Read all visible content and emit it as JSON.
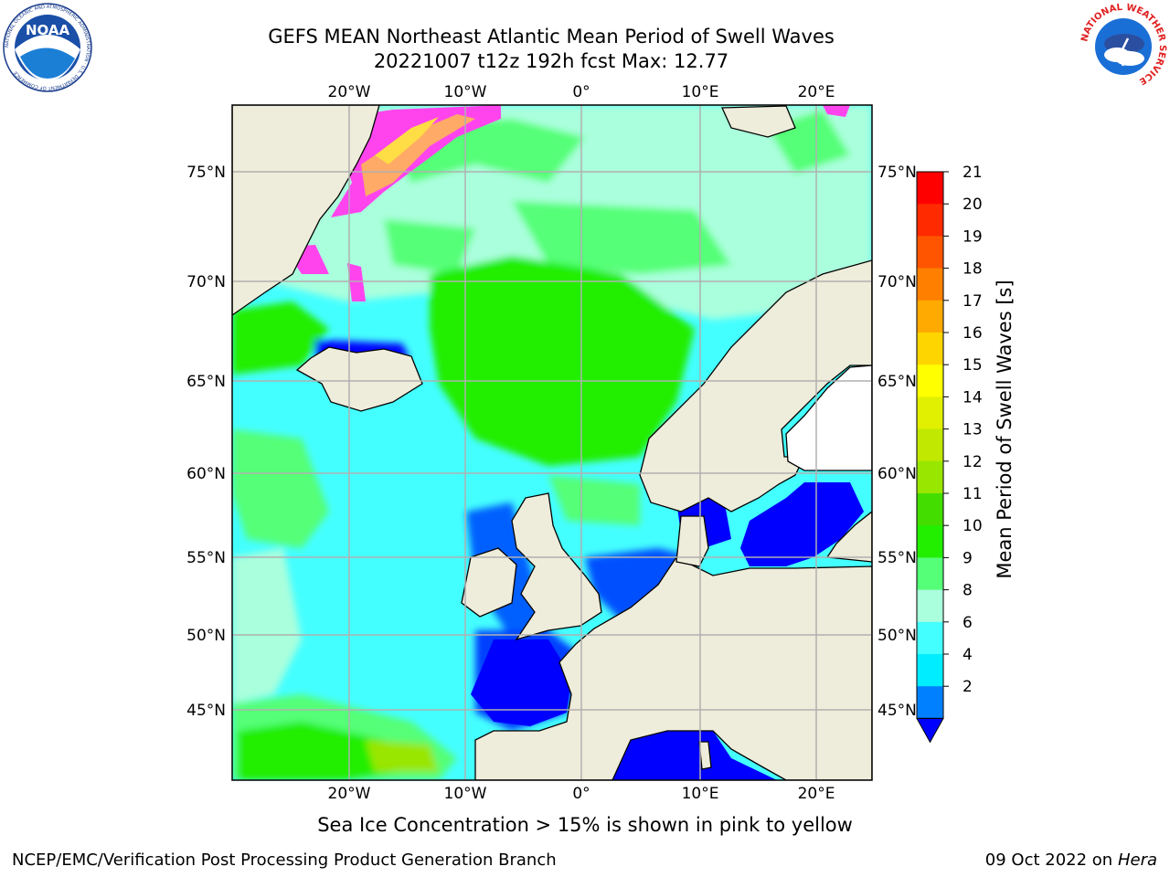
{
  "header": {
    "title_line1": "GEFS MEAN Northeast Atlantic Mean Period of Swell Waves",
    "title_line2": "20221007 t12z 192h fcst   Max: 12.77"
  },
  "logos": {
    "left": "NOAA",
    "left_ring_text": "NATIONAL OCEANIC AND ATMOSPHERIC ADMINISTRATION · U.S. DEPARTMENT OF COMMERCE",
    "right_ring_text": "NATIONAL WEATHER SERVICE"
  },
  "map": {
    "lon_labels": [
      "20°W",
      "10°W",
      "0°",
      "10°E",
      "20°E"
    ],
    "lat_labels": [
      "75°N",
      "70°N",
      "65°N",
      "60°N",
      "55°N",
      "50°N",
      "45°N"
    ],
    "colors": {
      "land": "#eeecda",
      "ice_land": "#ffffff",
      "grid": "#b0b0b0"
    }
  },
  "colorbar": {
    "label": "Mean Period of Swell Waves [s]",
    "ticks": [
      "21",
      "20",
      "19",
      "18",
      "17",
      "16",
      "15",
      "14",
      "13",
      "12",
      "11",
      "10",
      "9",
      "8",
      "6",
      "4",
      "2"
    ],
    "colors": [
      "#ff0000",
      "#ff2a00",
      "#ff5500",
      "#ff8000",
      "#ffaa00",
      "#ffd500",
      "#ffff00",
      "#e0f000",
      "#c0e800",
      "#99e600",
      "#44dd00",
      "#22ee00",
      "#55ff77",
      "#aaffdd",
      "#44ffff",
      "#00ecff",
      "#0080ff",
      "#0000ff"
    ]
  },
  "caption": "Sea Ice Concentration > 15% is shown in pink to yellow",
  "footer": {
    "left": "NCEP/EMC/Verification Post Processing Product Generation Branch",
    "right_date": "09 Oct 2022 on ",
    "right_host": "Hera"
  }
}
